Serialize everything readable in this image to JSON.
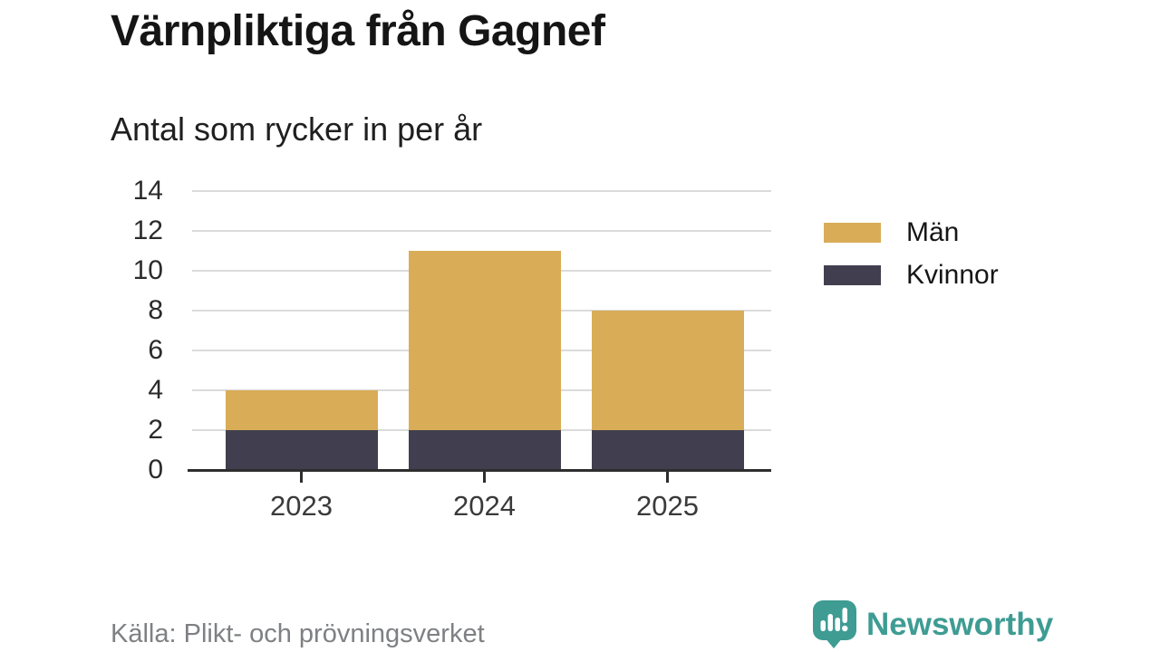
{
  "header": {
    "title": "Värnpliktiga från Gagnef",
    "subtitle": "Antal som rycker in per år"
  },
  "chart_data": {
    "type": "bar",
    "stacked": true,
    "title": "Värnpliktiga från Gagnef",
    "subtitle": "Antal som rycker in per år",
    "categories": [
      "2023",
      "2024",
      "2025"
    ],
    "series": [
      {
        "name": "Kvinnor",
        "color": "#413F4F",
        "values": [
          2,
          2,
          2
        ]
      },
      {
        "name": "Män",
        "color": "#D9AC57",
        "values": [
          2,
          9,
          6
        ]
      }
    ],
    "totals": [
      4,
      11,
      8
    ],
    "xlabel": "",
    "ylabel": "",
    "ylim": [
      0,
      14
    ],
    "yticks": [
      0,
      2,
      4,
      6,
      8,
      10,
      12,
      14
    ],
    "grid": true,
    "legend_position": "right"
  },
  "legend": {
    "items": [
      {
        "label": "Män",
        "color": "#D9AC57"
      },
      {
        "label": "Kvinnor",
        "color": "#413F4F"
      }
    ]
  },
  "footer": {
    "source": "Källa: Plikt- och prövningsverket",
    "brand": "Newsworthy"
  },
  "colors": {
    "men": "#D9AC57",
    "women": "#413F4F",
    "gridline": "#DBDBDB",
    "axis": "#2E2E2E",
    "brand_teal": "#3E9C93"
  }
}
